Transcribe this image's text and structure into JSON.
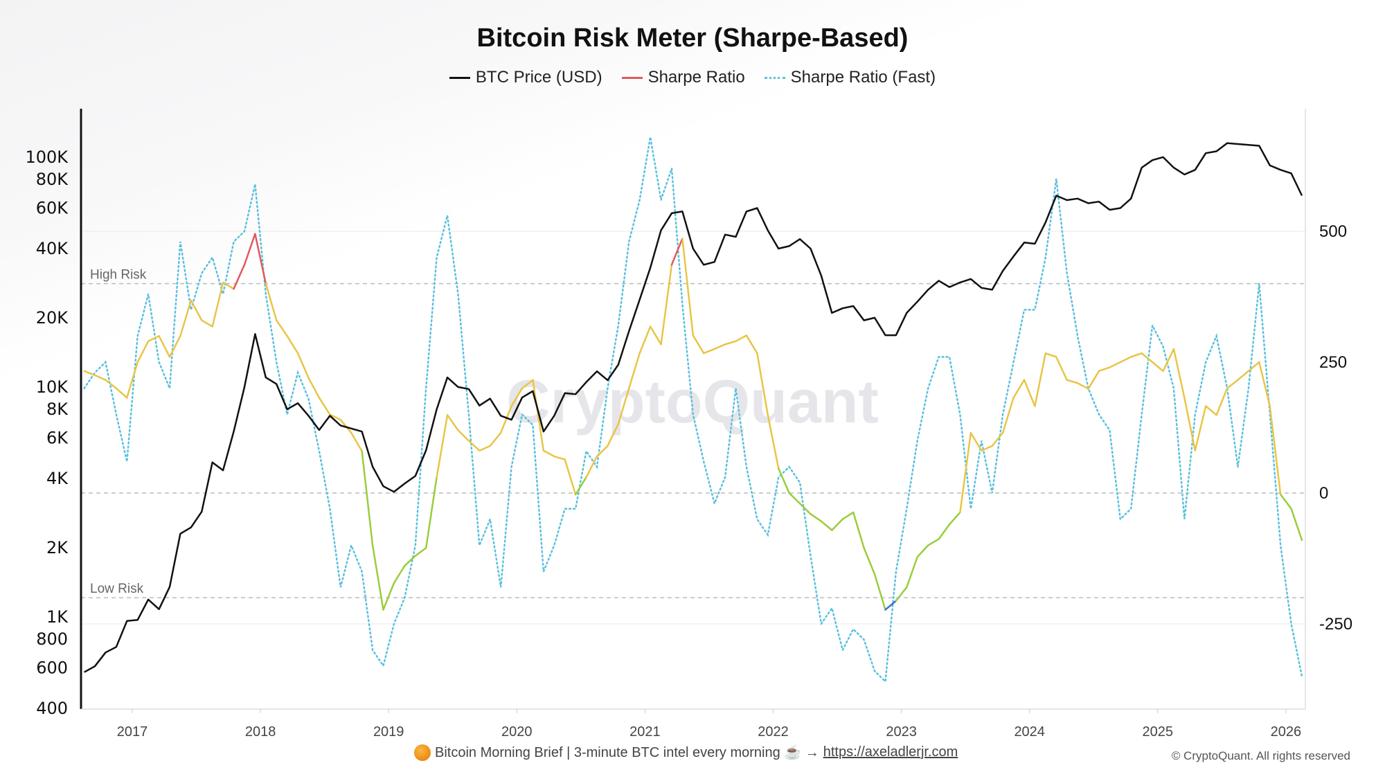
{
  "chart_data": {
    "type": "line",
    "title": "Bitcoin Risk Meter (Sharpe-Based)",
    "legend_position": "top-center",
    "start_month": "2016-08",
    "frequency": "monthly",
    "x_ticks": [
      "2017",
      "2018",
      "2019",
      "2020",
      "2021",
      "2022",
      "2023",
      "2024",
      "2025",
      "2026"
    ],
    "left_axis": {
      "scale": "log",
      "range": [
        400,
        150000
      ],
      "ticks": [
        {
          "v": 100000,
          "label": "100K"
        },
        {
          "v": 80000,
          "label": "80K"
        },
        {
          "v": 60000,
          "label": "60K"
        },
        {
          "v": 40000,
          "label": "40K"
        },
        {
          "v": 20000,
          "label": "20K"
        },
        {
          "v": 10000,
          "label": "10K"
        },
        {
          "v": 8000,
          "label": "8K"
        },
        {
          "v": 6000,
          "label": "6K"
        },
        {
          "v": 4000,
          "label": "4K"
        },
        {
          "v": 2000,
          "label": "2K"
        },
        {
          "v": 1000,
          "label": "1K"
        },
        {
          "v": 800,
          "label": "800"
        },
        {
          "v": 600,
          "label": "600"
        },
        {
          "v": 400,
          "label": "400"
        }
      ]
    },
    "right_axis": {
      "scale": "linear",
      "range": [
        -450,
        720
      ],
      "ticks": [
        {
          "v": 500,
          "label": "500"
        },
        {
          "v": 250,
          "label": "250"
        },
        {
          "v": 0,
          "label": "0"
        },
        {
          "v": -250,
          "label": "-250"
        }
      ]
    },
    "reference_lines": [
      {
        "value": 400,
        "label": "High Risk"
      },
      {
        "value": 0,
        "label": ""
      },
      {
        "value": -200,
        "label": "Low Risk"
      }
    ],
    "grid": true,
    "series": [
      {
        "name": "BTC Price (USD)",
        "axis": "left",
        "color": "#111111",
        "style": "solid",
        "values": [
          575,
          610,
          700,
          740,
          960,
          970,
          1190,
          1080,
          1350,
          2300,
          2450,
          2870,
          4700,
          4340,
          6400,
          10000,
          17000,
          11000,
          10300,
          8000,
          8500,
          7500,
          6500,
          7500,
          6800,
          6600,
          6400,
          4500,
          3700,
          3500,
          3800,
          4100,
          5300,
          8000,
          11000,
          10000,
          9800,
          8300,
          8900,
          7500,
          7200,
          9000,
          9600,
          6400,
          7500,
          9400,
          9300,
          10500,
          11700,
          10700,
          12500,
          17500,
          24000,
          33000,
          48000,
          57000,
          58000,
          40000,
          34000,
          35000,
          46000,
          45000,
          58000,
          60000,
          48000,
          40000,
          41000,
          44000,
          40000,
          30500,
          21000,
          22000,
          22500,
          19500,
          20000,
          16800,
          16800,
          21000,
          23500,
          26500,
          29000,
          27200,
          28500,
          29500,
          27000,
          26500,
          32000,
          37000,
          42500,
          42000,
          52000,
          68000,
          65000,
          66000,
          63000,
          64000,
          59000,
          60000,
          66000,
          90000,
          97000,
          100000,
          90000,
          84000,
          88000,
          104000,
          106000,
          115000,
          114000,
          113000,
          112000,
          92000,
          88000,
          85000,
          68000
        ]
      },
      {
        "name": "Sharpe Ratio",
        "axis": "right",
        "color": "#e05a5a",
        "style": "solid",
        "level_colors": {
          "high": "#e05a5a",
          "neutral": "#e8c547",
          "low": "#9acd3c",
          "extreme_low": "#3d6fd8"
        },
        "values": [
          233,
          225,
          216,
          200,
          182,
          250,
          290,
          300,
          260,
          300,
          368,
          330,
          318,
          402,
          390,
          436,
          495,
          400,
          330,
          300,
          267,
          220,
          182,
          150,
          140,
          115,
          80,
          -100,
          -223,
          -172,
          -139,
          -120,
          -105,
          30,
          149,
          120,
          100,
          81,
          90,
          115,
          166,
          200,
          216,
          81,
          70,
          64,
          -3,
          30,
          70,
          90,
          132,
          200,
          267,
          318,
          284,
          436,
          486,
          301,
          267,
          275,
          284,
          290,
          301,
          267,
          149,
          47,
          0,
          -20,
          -40,
          -54,
          -71,
          -50,
          -37,
          -105,
          -155,
          -223,
          -206,
          -180,
          -122,
          -100,
          -88,
          -60,
          -37,
          115,
          81,
          90,
          115,
          182,
          216,
          166,
          267,
          260,
          216,
          210,
          199,
          233,
          240,
          250,
          260,
          267,
          250,
          233,
          275,
          182,
          81,
          166,
          149,
          200,
          216,
          233,
          250,
          166,
          -3,
          -30,
          -90
        ]
      },
      {
        "name": "Sharpe Ratio (Fast)",
        "axis": "right",
        "color": "#5bc0de",
        "style": "dotted",
        "values": [
          200,
          230,
          250,
          150,
          60,
          300,
          380,
          250,
          200,
          480,
          350,
          420,
          450,
          380,
          480,
          500,
          590,
          380,
          250,
          150,
          230,
          180,
          80,
          -30,
          -180,
          -100,
          -150,
          -300,
          -330,
          -250,
          -200,
          -100,
          200,
          450,
          530,
          380,
          150,
          -100,
          -50,
          -180,
          50,
          150,
          130,
          -150,
          -100,
          -30,
          -30,
          80,
          50,
          200,
          320,
          480,
          560,
          680,
          560,
          620,
          360,
          150,
          60,
          -20,
          30,
          200,
          50,
          -50,
          -80,
          30,
          50,
          20,
          -120,
          -250,
          -220,
          -300,
          -260,
          -280,
          -340,
          -360,
          -150,
          -30,
          100,
          200,
          260,
          260,
          150,
          -30,
          100,
          0,
          150,
          250,
          350,
          350,
          450,
          600,
          420,
          300,
          200,
          150,
          120,
          -50,
          -30,
          150,
          320,
          280,
          200,
          -50,
          150,
          250,
          300,
          200,
          50,
          200,
          400,
          150,
          -100,
          -250,
          -350
        ]
      }
    ]
  },
  "watermark": "CryptoQuant",
  "footer": {
    "text": "Bitcoin Morning Brief | 3-minute BTC intel every morning ☕ →",
    "link": "https://axeladlerjr.com",
    "copyright": "© CryptoQuant. All rights reserved"
  }
}
